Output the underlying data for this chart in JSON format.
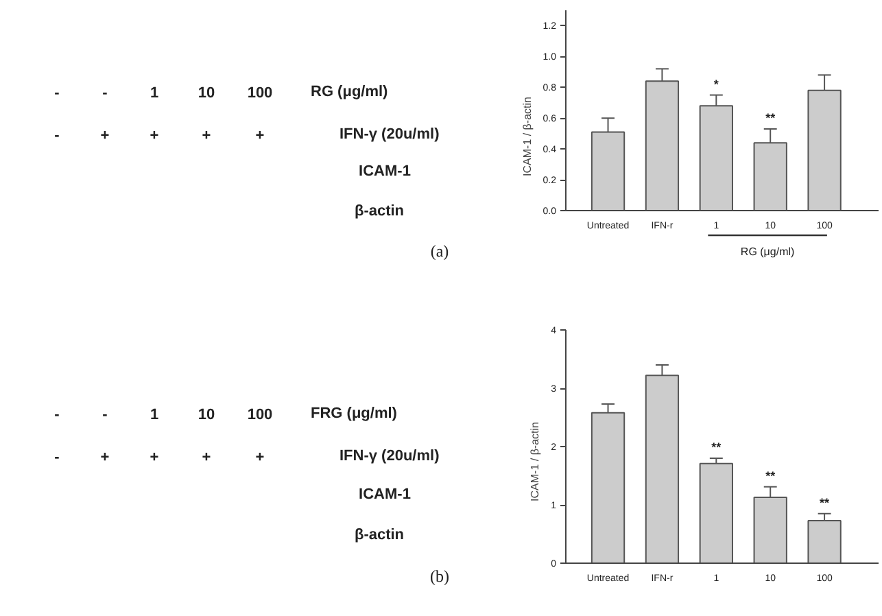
{
  "chart_data": [
    {
      "type": "other",
      "annotations": [
        "-",
        "-",
        "1",
        "10",
        "100",
        "RG (μg/ml)",
        "-",
        "+",
        "+",
        "+",
        "+",
        "IFN-γ (20u/ml)",
        "ICAM-1",
        "β-actin",
        "(a)"
      ]
    },
    {
      "type": "bar",
      "ylabel": "ICAM-1 / β-actin",
      "categories": [
        "Untreated",
        "IFN-r",
        "1",
        "10",
        "100"
      ],
      "values": [
        0.51,
        0.84,
        0.68,
        0.44,
        0.78
      ],
      "color": "#cccccc",
      "errors": [
        [
          0.51,
          0.6
        ],
        [
          0.84,
          0.92
        ],
        [
          0.68,
          0.75
        ],
        [
          0.44,
          0.53
        ],
        [
          0.78,
          0.88
        ]
      ],
      "ylim": [
        0,
        1.3
      ],
      "yticks": [
        {
          "value": 0,
          "label": "0.0"
        },
        0.2,
        0.4,
        0.6,
        0.8,
        {
          "value": 1,
          "label": "1.0"
        },
        1.2
      ],
      "annotations": [
        {
          "text": "*",
          "x": "1",
          "y": 0.75
        },
        {
          "text": "**",
          "x": "10",
          "y": 0.53
        },
        "RG (μg/ml)"
      ]
    },
    {
      "type": "other",
      "annotations": [
        "-",
        "-",
        "1",
        "10",
        "100",
        "FRG (μg/ml)",
        "-",
        "+",
        "+",
        "+",
        "+",
        "IFN-γ (20u/ml)",
        "ICAM-1",
        "β-actin",
        "(b)"
      ]
    },
    {
      "type": "bar",
      "ylabel": "ICAM-1 / β-actin",
      "categories": [
        "Untreated",
        "IFN-r",
        "1",
        "10",
        "100"
      ],
      "values": [
        2.58,
        3.22,
        1.71,
        1.13,
        0.73
      ],
      "color": "#cccccc",
      "errors": [
        [
          2.58,
          2.73
        ],
        [
          3.22,
          3.4
        ],
        [
          1.71,
          1.8
        ],
        [
          1.13,
          1.31
        ],
        [
          0.73,
          0.85
        ]
      ],
      "ylim": [
        0,
        4
      ],
      "yticks": [
        0,
        1,
        2,
        3,
        4
      ],
      "annotations": [
        {
          "text": "**",
          "x": "1",
          "y": 1.8
        },
        {
          "text": "**",
          "x": "10",
          "y": 1.31
        },
        {
          "text": "**",
          "x": "100",
          "y": 0.85
        }
      ]
    }
  ]
}
